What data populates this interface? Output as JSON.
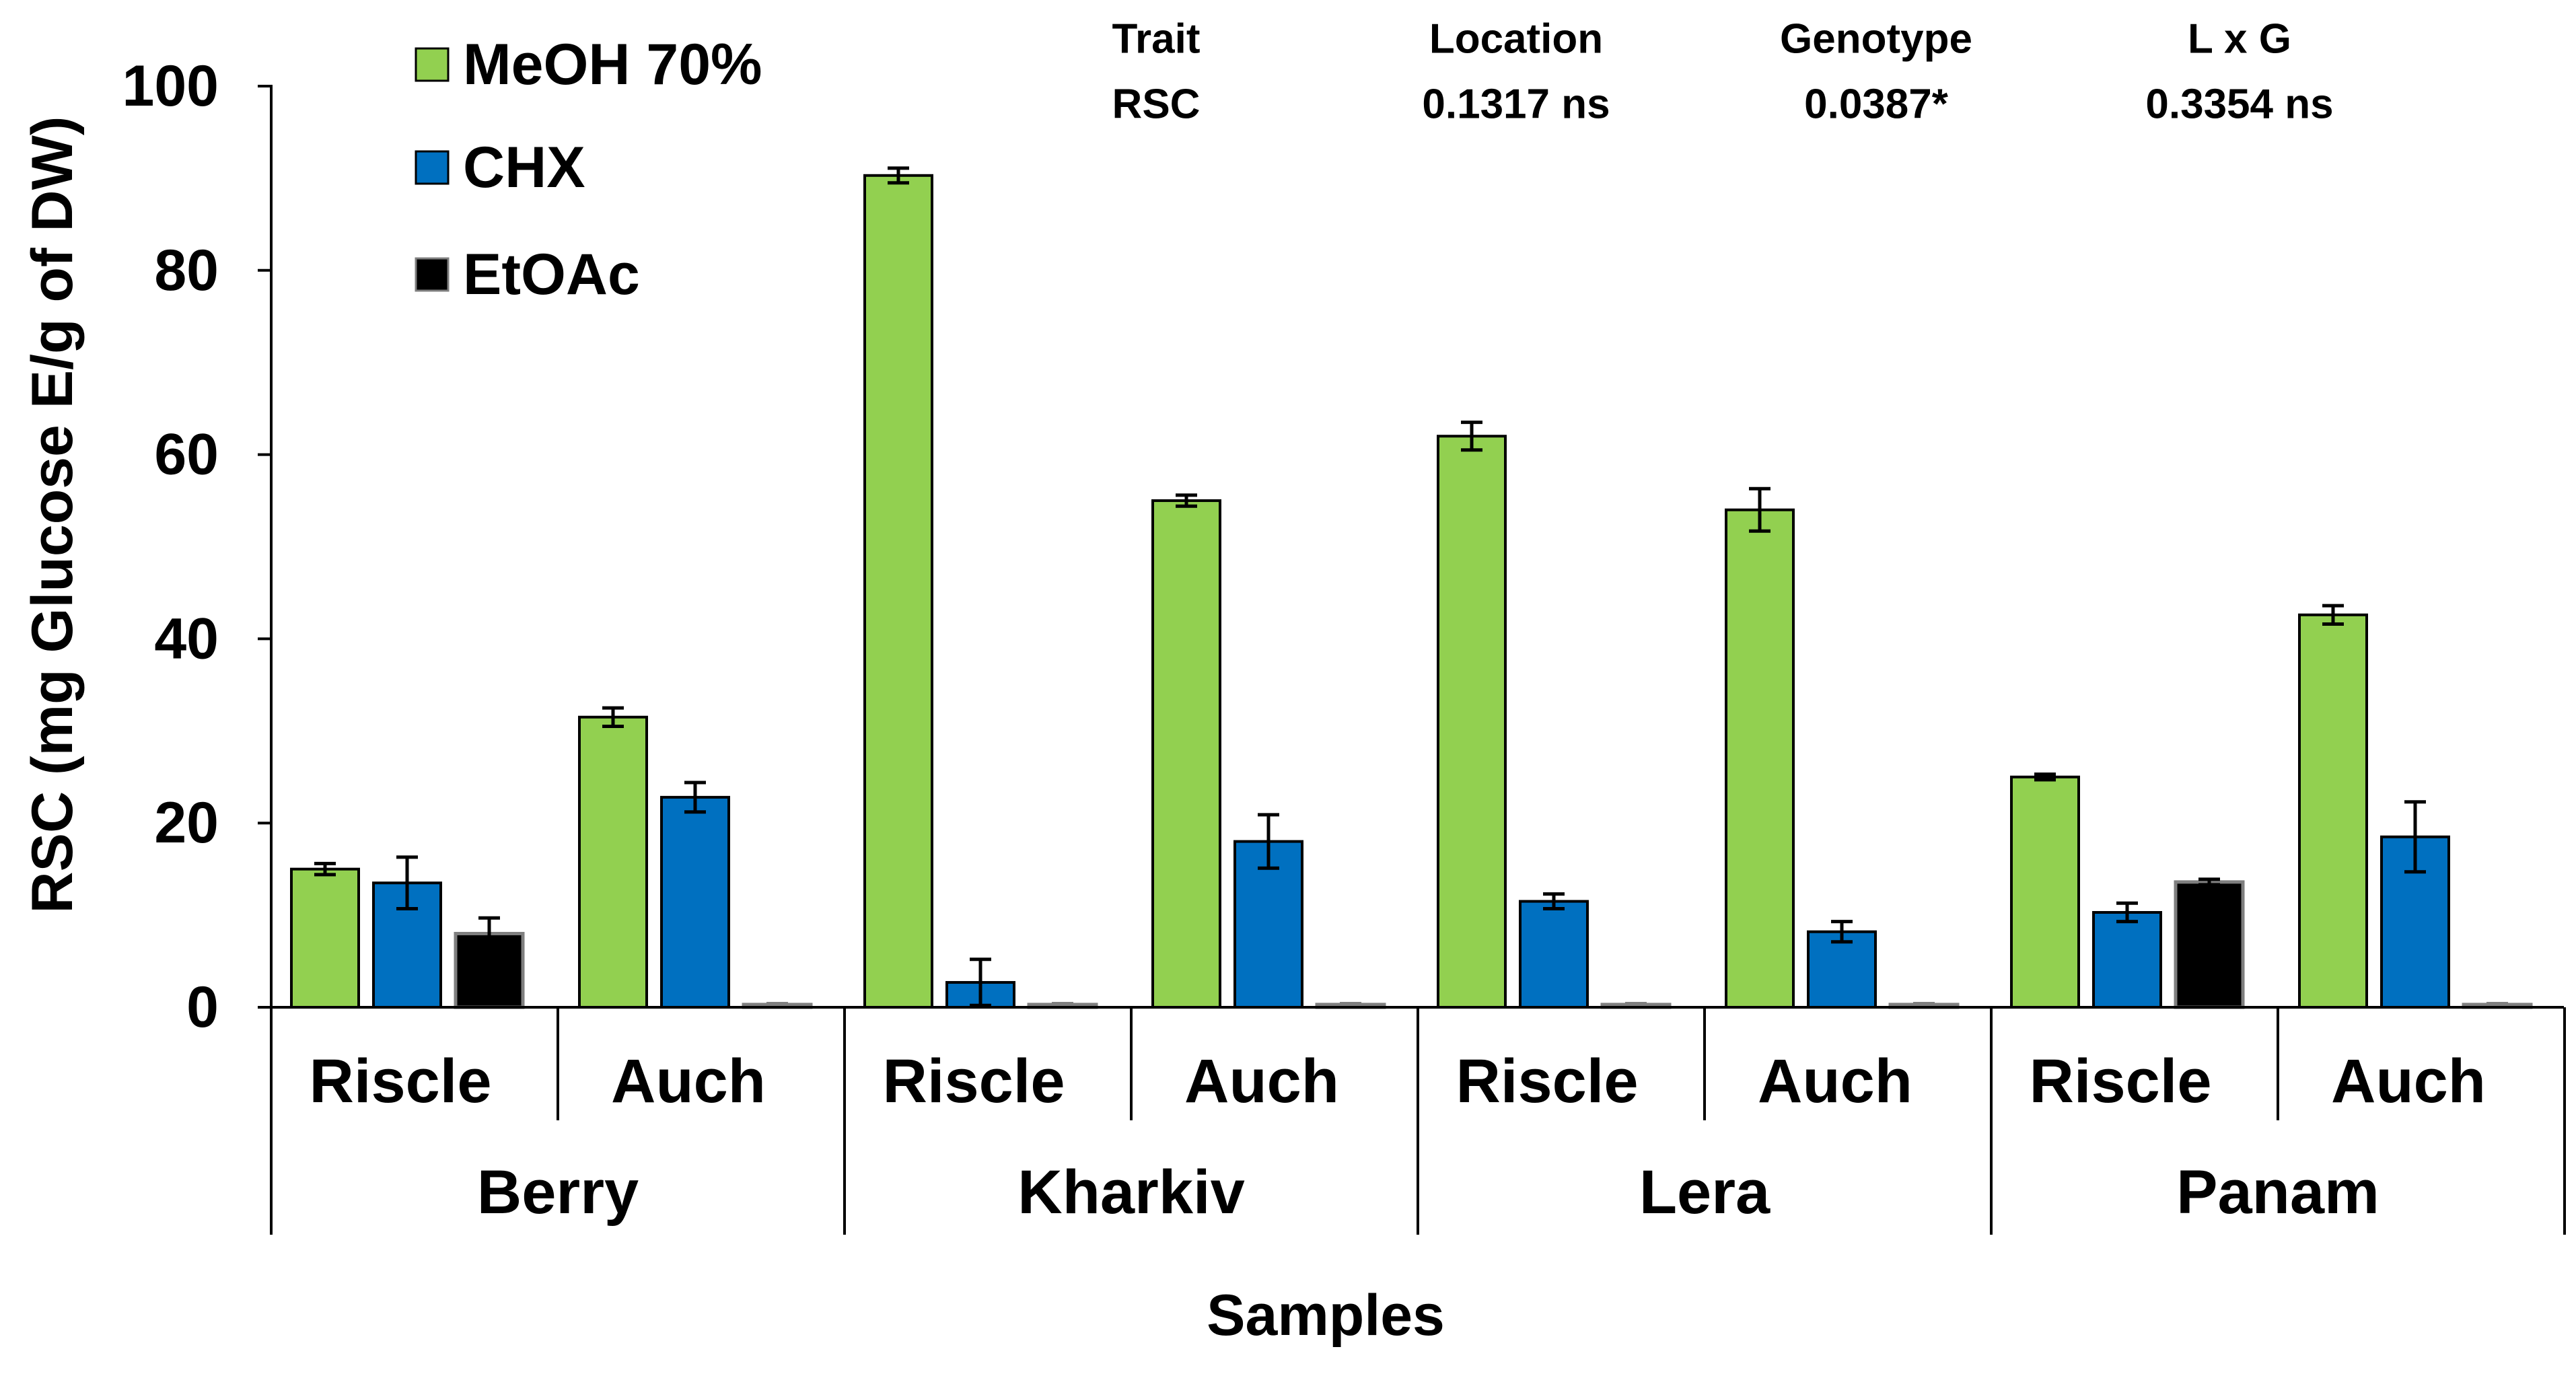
{
  "chart_data": {
    "type": "bar",
    "title": "",
    "xlabel": "Samples",
    "ylabel": "RSC (mg Glucose E/g of DW)",
    "ylim": [
      0,
      100
    ],
    "yticks": [
      0,
      20,
      40,
      60,
      80,
      100
    ],
    "grid": false,
    "legend_position": "top-left",
    "groups": [
      {
        "name": "Berry",
        "categories": [
          "Riscle",
          "Auch"
        ]
      },
      {
        "name": "Kharkiv",
        "categories": [
          "Riscle",
          "Auch"
        ]
      },
      {
        "name": "Lera",
        "categories": [
          "Riscle",
          "Auch"
        ]
      },
      {
        "name": "Panam",
        "categories": [
          "Riscle",
          "Auch"
        ]
      }
    ],
    "series": [
      {
        "name": "MeOH 70%",
        "color": "#92D050",
        "values": [
          15.0,
          31.5,
          90.3,
          55.0,
          62.0,
          54.0,
          25.0,
          42.6
        ],
        "errors": [
          0.6,
          1.0,
          0.8,
          0.6,
          1.5,
          2.3,
          0.3,
          1.0
        ]
      },
      {
        "name": "CHX",
        "color": "#0070C0",
        "values": [
          13.5,
          22.8,
          2.7,
          18.0,
          11.5,
          8.2,
          10.3,
          18.5
        ],
        "errors": [
          2.8,
          1.6,
          2.5,
          2.9,
          0.8,
          1.1,
          1.0,
          3.8
        ]
      },
      {
        "name": "EtOAc",
        "color": "#000000",
        "values": [
          8.0,
          0.3,
          0.3,
          0.3,
          0.3,
          0.3,
          13.6,
          0.3
        ],
        "errors": [
          1.7,
          0.1,
          0.1,
          0.1,
          0.1,
          0.1,
          0.3,
          0.1
        ]
      }
    ],
    "stats_table": {
      "headers": [
        "Trait",
        "Location",
        "Genotype",
        "L x G"
      ],
      "row": [
        "RSC",
        "0.1317 ns",
        "0.0387*",
        "0.3354 ns"
      ]
    }
  }
}
